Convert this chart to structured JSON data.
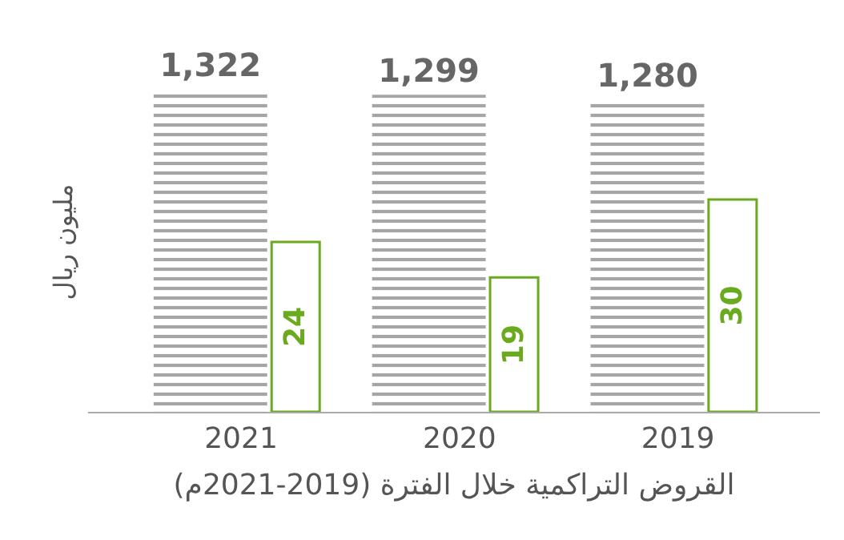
{
  "chart_data": {
    "type": "bar",
    "categories": [
      "2021",
      "2020",
      "2019"
    ],
    "xlabel": "القروض التراكمية خلال الفترة (2019-2021م)",
    "ylabel": "مليون ريال",
    "series": [
      {
        "color": "#a6a6a6",
        "values": [
          1322,
          1299,
          1280
        ],
        "value_labels": [
          "1,322",
          "1,299",
          "1,280"
        ]
      },
      {
        "color": "#6aaa1e",
        "values": [
          24,
          19,
          30
        ],
        "value_labels": [
          "24",
          "19",
          "30"
        ],
        "axis": "y2"
      }
    ]
  }
}
